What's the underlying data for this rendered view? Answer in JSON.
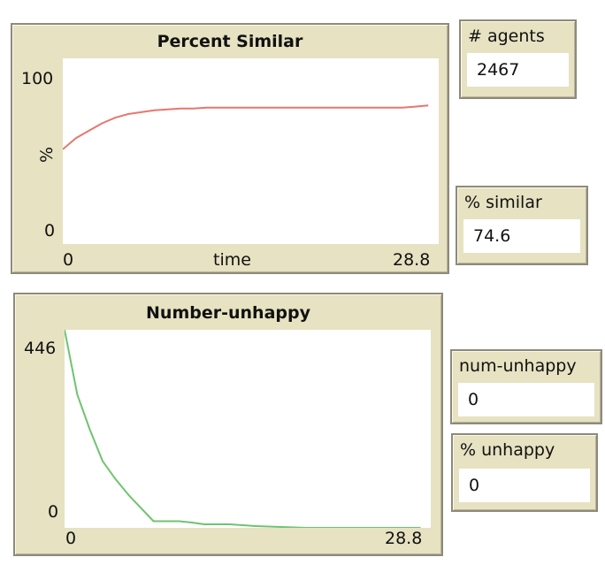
{
  "plots": [
    {
      "title": "Percent Similar",
      "y_label": "%",
      "x_label": "time",
      "y_max_label": "100",
      "y_min_label": "0",
      "x_min_label": "0",
      "x_max_label": "28.8",
      "color": "#e8766c"
    },
    {
      "title": "Number-unhappy",
      "y_max_label": "446",
      "y_min_label": "0",
      "x_min_label": "0",
      "x_max_label": "28.8",
      "color": "#6ec46e"
    }
  ],
  "monitors": {
    "agents": {
      "label": "# agents",
      "value": "2467"
    },
    "similar": {
      "label": "% similar",
      "value": "74.6"
    },
    "num_unhappy": {
      "label": "num-unhappy",
      "value": "0"
    },
    "pct_unhappy": {
      "label": "% unhappy",
      "value": "0"
    }
  },
  "chart_data": [
    {
      "type": "line",
      "title": "Percent Similar",
      "xlabel": "time",
      "ylabel": "%",
      "xlim": [
        0,
        28.8
      ],
      "ylim": [
        0,
        100
      ],
      "grid": false,
      "series": [
        {
          "color": "#e8766c",
          "x": [
            0,
            1,
            2,
            3,
            4,
            5,
            6,
            7,
            8,
            9,
            10,
            11,
            12,
            13,
            14,
            15,
            16,
            17,
            18,
            19,
            20,
            21,
            22,
            23,
            24,
            25,
            26,
            27,
            28
          ],
          "y": [
            51,
            57,
            61,
            65,
            68,
            70,
            71,
            72,
            72.5,
            73,
            73,
            73.5,
            73.5,
            73.5,
            73.5,
            73.5,
            73.5,
            73.5,
            73.5,
            73.5,
            73.5,
            73.5,
            73.5,
            73.5,
            73.5,
            73.5,
            73.5,
            74,
            74.6
          ]
        }
      ]
    },
    {
      "type": "line",
      "title": "Number-unhappy",
      "xlim": [
        0,
        28.8
      ],
      "ylim": [
        0,
        446
      ],
      "grid": false,
      "series": [
        {
          "color": "#6ec46e",
          "x": [
            0,
            1,
            2,
            3,
            4,
            5,
            6,
            7,
            8,
            9,
            10,
            11,
            12,
            13,
            14,
            15,
            16,
            17,
            18,
            19,
            20,
            21,
            22,
            23,
            24,
            25,
            26,
            27,
            28
          ],
          "y": [
            446,
            300,
            220,
            150,
            110,
            75,
            45,
            15,
            15,
            15,
            12,
            8,
            8,
            8,
            6,
            4,
            3,
            2,
            1,
            0,
            0,
            0,
            0,
            0,
            0,
            0,
            0,
            0,
            0
          ]
        }
      ]
    }
  ]
}
